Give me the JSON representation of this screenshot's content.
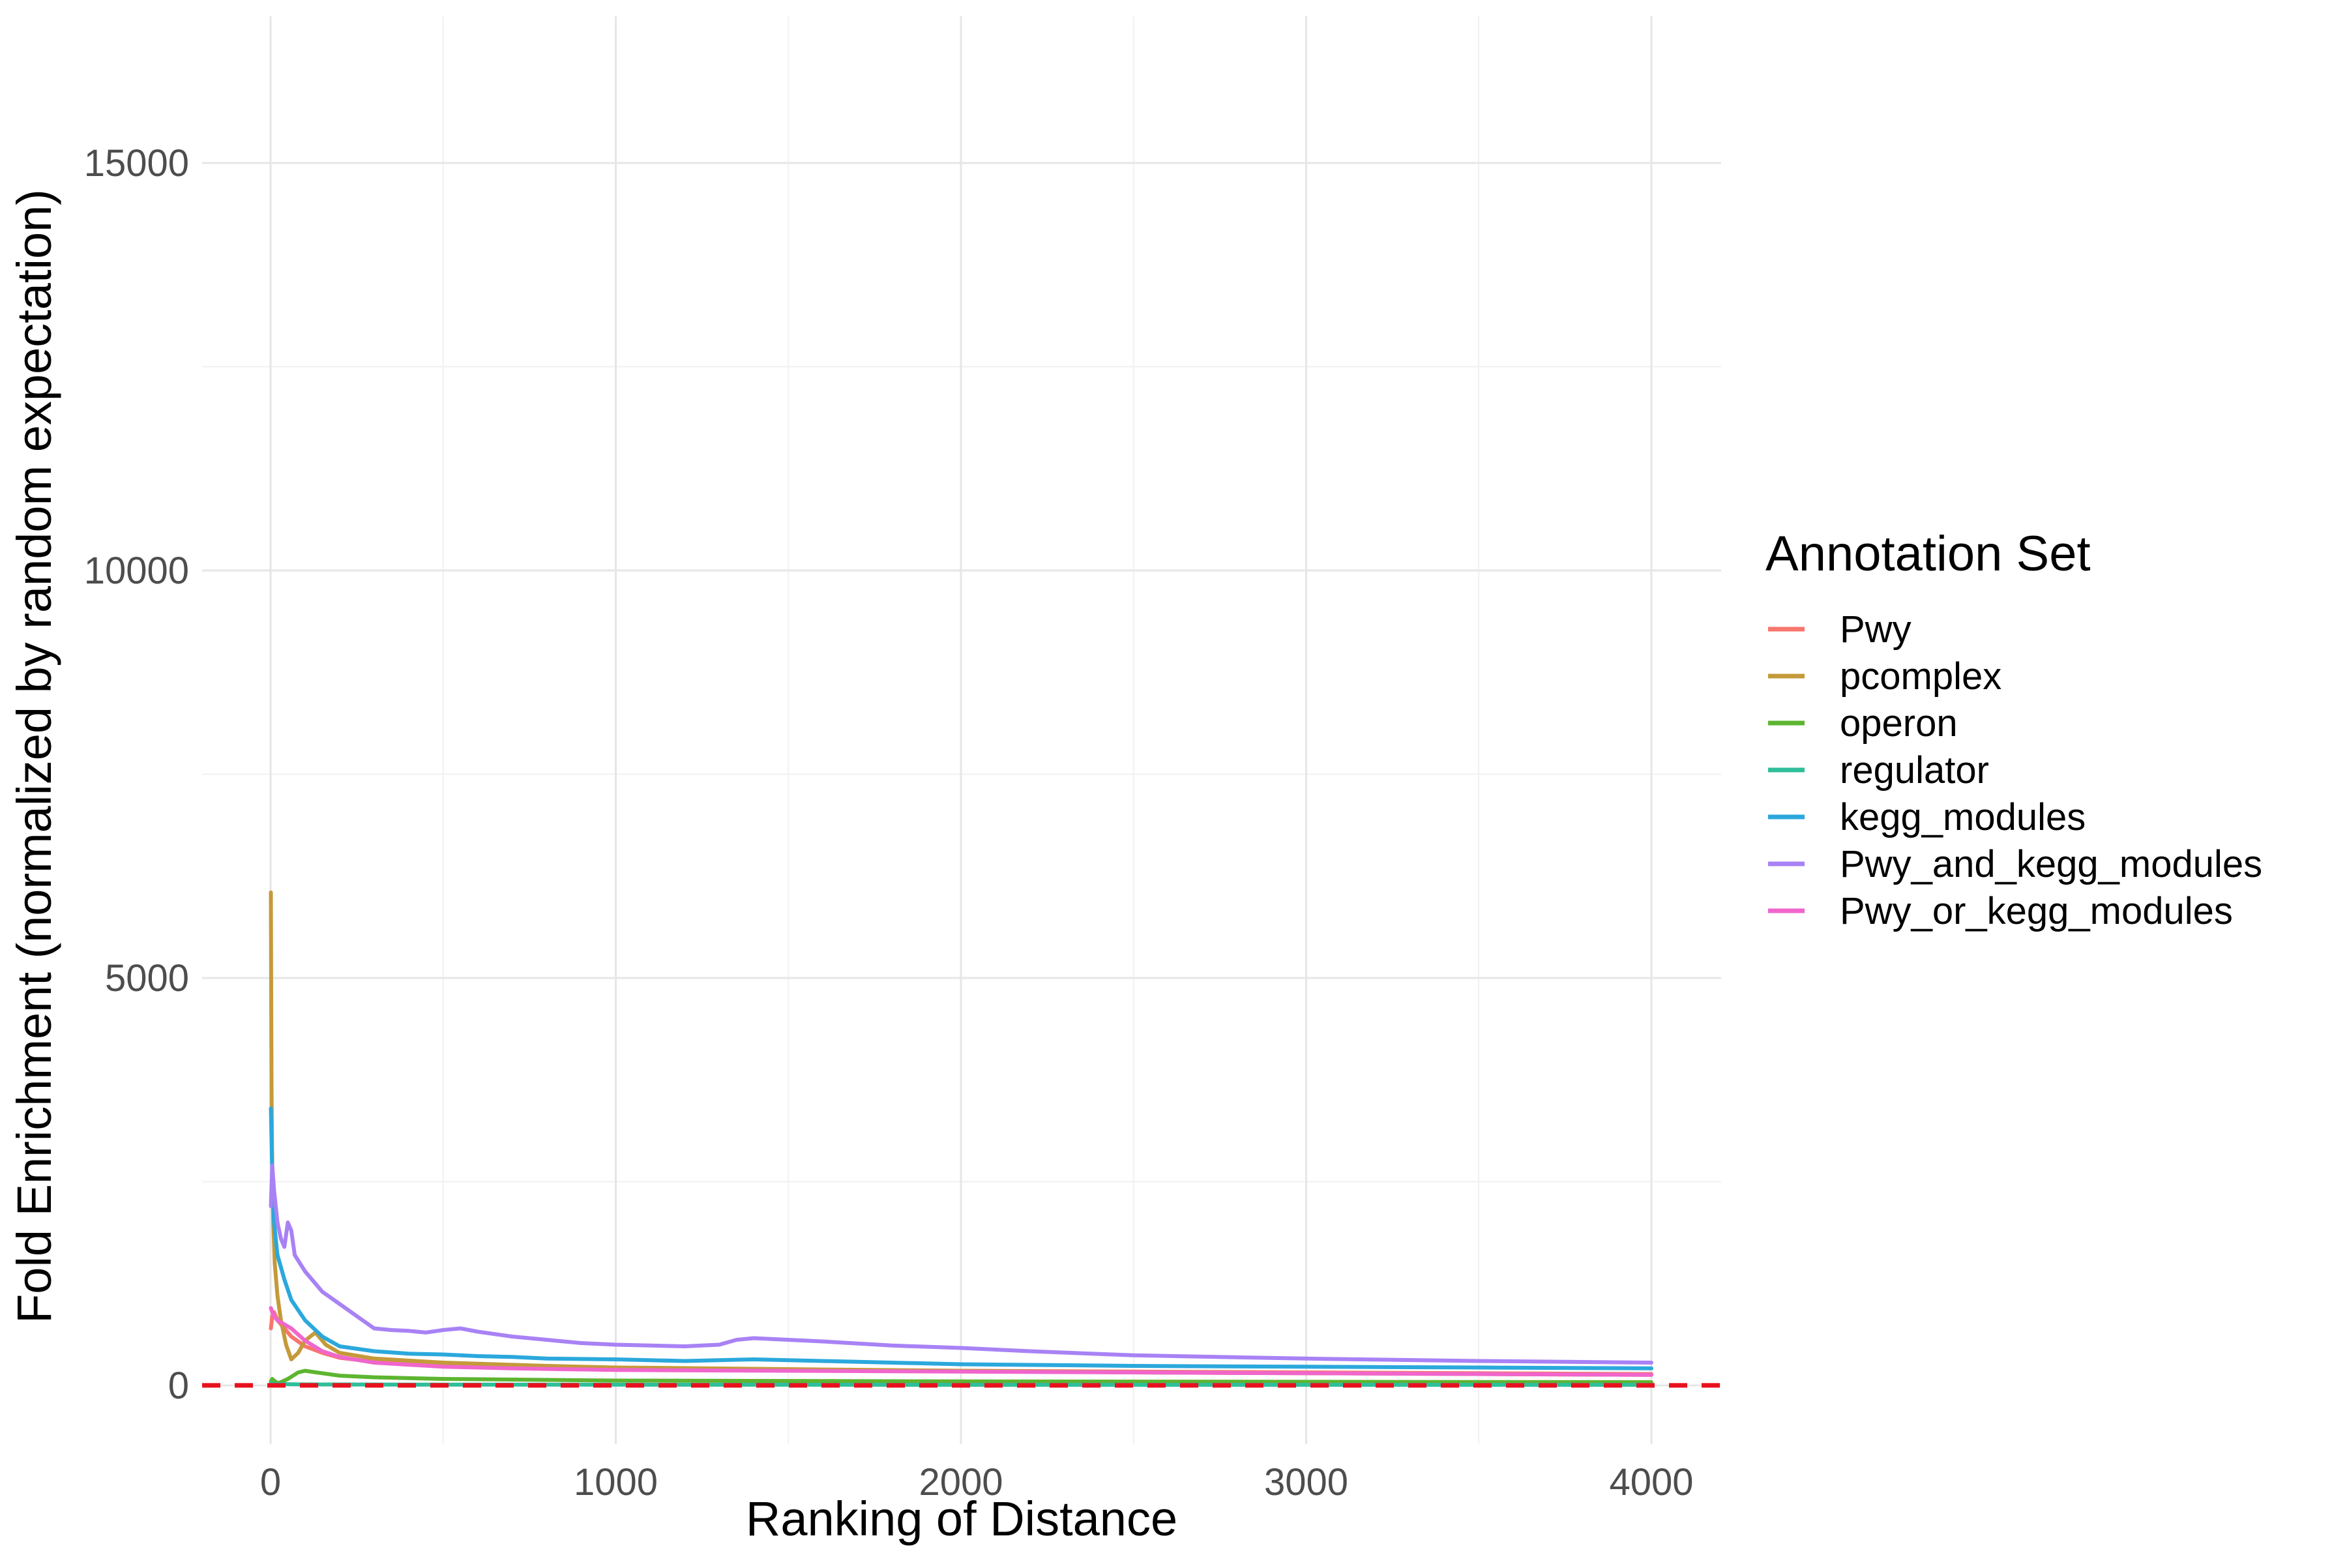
{
  "chart_data": {
    "type": "line",
    "title": "",
    "xlabel": "Ranking of Distance",
    "ylabel": "Fold Enrichment (normalized by random expectation)",
    "xlim": [
      -200,
      4200
    ],
    "ylim": [
      -800,
      16500
    ],
    "x_ticks": [
      0,
      1000,
      2000,
      3000,
      4000
    ],
    "y_ticks": [
      0,
      5000,
      10000,
      15000
    ],
    "x_tick_labels": [
      "0",
      "1000",
      "2000",
      "3000",
      "4000"
    ],
    "y_tick_labels": [
      "0",
      "5000",
      "10000",
      "15000"
    ],
    "grid": true,
    "reference_line": {
      "y": 1,
      "color": "#e8111d",
      "style": "dashed"
    },
    "legend": {
      "title": "Annotation Set",
      "position": "right"
    },
    "series": [
      {
        "name": "Pwy",
        "color": "#f8766d",
        "x": [
          1,
          5,
          10,
          20,
          40,
          60,
          100,
          150,
          200,
          300,
          500,
          700,
          1000,
          1500,
          2000,
          2500,
          3000,
          3500,
          4000
        ],
        "y": [
          700,
          850,
          900,
          800,
          700,
          600,
          480,
          400,
          340,
          290,
          240,
          220,
          200,
          190,
          180,
          170,
          160,
          150,
          140
        ]
      },
      {
        "name": "pcomplex",
        "color": "#c49a3a",
        "x": [
          1,
          2,
          3,
          5,
          8,
          12,
          20,
          30,
          45,
          60,
          80,
          100,
          130,
          160,
          200,
          300,
          500,
          800,
          1000,
          1500,
          2000,
          2500,
          3000,
          3500,
          4000
        ],
        "y": [
          6050,
          4500,
          3500,
          2700,
          2000,
          1500,
          1100,
          800,
          500,
          320,
          400,
          550,
          650,
          500,
          400,
          330,
          280,
          240,
          220,
          200,
          180,
          160,
          150,
          140,
          130
        ]
      },
      {
        "name": "operon",
        "color": "#5db530",
        "x": [
          1,
          5,
          10,
          20,
          30,
          50,
          80,
          100,
          150,
          200,
          300,
          500,
          1000,
          2000,
          3000,
          4000
        ],
        "y": [
          50,
          80,
          60,
          30,
          40,
          80,
          160,
          180,
          150,
          120,
          100,
          80,
          60,
          50,
          45,
          40
        ]
      },
      {
        "name": "regulator",
        "color": "#2fbe9a",
        "x": [
          1,
          10,
          50,
          100,
          500,
          1000,
          2000,
          3000,
          4000
        ],
        "y": [
          30,
          20,
          15,
          12,
          10,
          10,
          8,
          8,
          8
        ]
      },
      {
        "name": "kegg_modules",
        "color": "#2ba8dc",
        "x": [
          1,
          5,
          10,
          20,
          40,
          60,
          100,
          150,
          200,
          300,
          400,
          500,
          600,
          700,
          800,
          1000,
          1200,
          1400,
          1600,
          2000,
          2500,
          3000,
          3500,
          4000
        ],
        "y": [
          3400,
          2600,
          2000,
          1600,
          1300,
          1050,
          800,
          600,
          480,
          420,
          390,
          380,
          360,
          350,
          330,
          320,
          300,
          320,
          300,
          260,
          240,
          230,
          220,
          210
        ]
      },
      {
        "name": "Pwy_and_kegg_modules",
        "color": "#a882f5",
        "x": [
          1,
          5,
          10,
          20,
          30,
          40,
          50,
          60,
          70,
          100,
          150,
          200,
          250,
          300,
          350,
          400,
          450,
          500,
          550,
          600,
          700,
          800,
          900,
          1000,
          1100,
          1200,
          1300,
          1350,
          1400,
          1500,
          1600,
          1800,
          2000,
          2200,
          2500,
          3000,
          3500,
          4000
        ],
        "y": [
          2200,
          2700,
          2400,
          2000,
          1800,
          1700,
          2000,
          1900,
          1600,
          1400,
          1150,
          1000,
          850,
          700,
          680,
          670,
          650,
          680,
          700,
          660,
          600,
          560,
          520,
          500,
          490,
          480,
          500,
          560,
          580,
          560,
          540,
          490,
          460,
          420,
          370,
          330,
          300,
          280
        ]
      },
      {
        "name": "Pwy_or_kegg_modules",
        "color": "#f066cc",
        "x": [
          1,
          5,
          10,
          20,
          40,
          60,
          100,
          150,
          200,
          300,
          500,
          700,
          1000,
          1500,
          2000,
          2500,
          3000,
          3500,
          4000
        ],
        "y": [
          950,
          900,
          850,
          800,
          750,
          700,
          550,
          420,
          350,
          280,
          230,
          210,
          190,
          180,
          170,
          160,
          150,
          140,
          130
        ]
      }
    ]
  }
}
